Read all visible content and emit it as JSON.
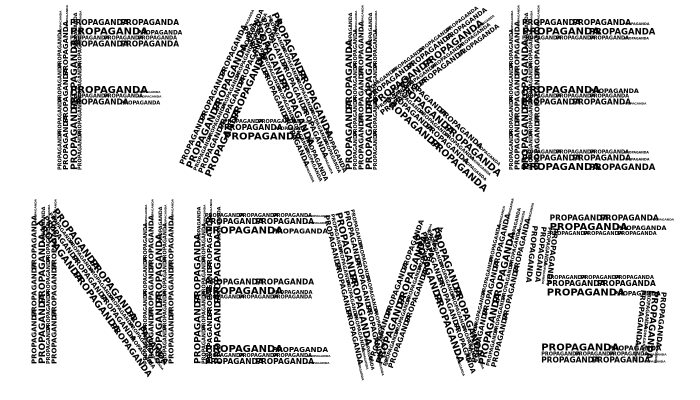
{
  "artwork": {
    "lines": [
      {
        "letters": [
          "F",
          "A",
          "K",
          "E"
        ]
      },
      {
        "letters": [
          "N",
          "E",
          "W",
          "S"
        ]
      }
    ],
    "fill_word": "PROPAGANDA",
    "colors": {
      "background": "#ffffff",
      "text": "#000000"
    }
  }
}
